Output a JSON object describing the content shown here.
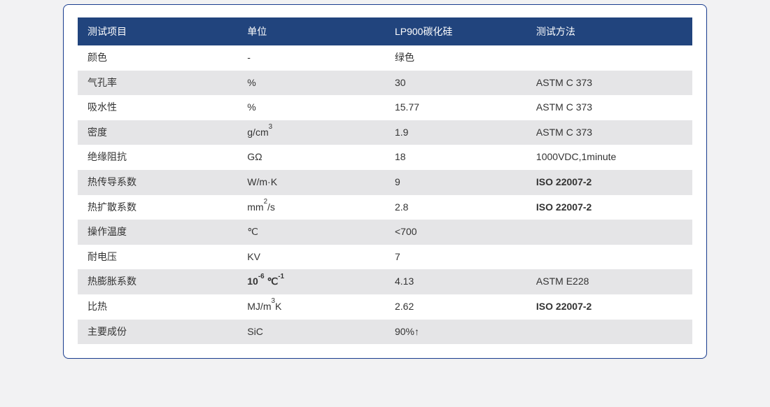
{
  "style": {
    "border_color": "#1a3d8f",
    "header_bg": "#21447d",
    "header_fg": "#ffffff",
    "row_even_bg": "#ffffff",
    "row_odd_bg": "#e5e5e7",
    "text_color": "#333333"
  },
  "table": {
    "headers": [
      "测试项目",
      "单位",
      "LP900碳化硅",
      "测试方法"
    ],
    "rows": [
      {
        "item": "颜色",
        "unit": "-",
        "value": "绿色",
        "method": ""
      },
      {
        "item": "气孔率",
        "unit": "%",
        "value": "30",
        "method": "ASTM C 373"
      },
      {
        "item": "吸水性",
        "unit": "%",
        "value": "15.77",
        "method": "ASTM C 373"
      },
      {
        "item": "密度",
        "unit_html": "g/cm<sup>3</sup>",
        "value": "1.9",
        "method": "ASTM C 373"
      },
      {
        "item": "绝缘阻抗",
        "unit": "GΩ",
        "value": "18",
        "method": "1000VDC,1minute"
      },
      {
        "item": "热传导系数",
        "unit": "W/m·K",
        "value": "9",
        "method": "ISO 22007-2",
        "method_bold": true
      },
      {
        "item": "热扩散系数",
        "unit_html": "mm<sup>2</sup>/s",
        "value": "2.8",
        "method": "ISO 22007-2",
        "method_bold": true
      },
      {
        "item": "操作温度",
        "unit": "℃",
        "value": "<700",
        "method": ""
      },
      {
        "item": "耐电压",
        "unit": "KV",
        "value": "7",
        "method": ""
      },
      {
        "item": "热膨胀系数",
        "unit_html": "10<sup>-6</sup> ℃<sup>-1</sup>",
        "unit_bold": true,
        "value": "4.13",
        "method": "ASTM E228"
      },
      {
        "item": "比热",
        "unit_html": "MJ/m<sup>3</sup>K",
        "value": "2.62",
        "method": "ISO 22007-2",
        "method_bold": true
      },
      {
        "item": "主要成份",
        "unit": "SiC",
        "value": "90%↑",
        "method": ""
      }
    ]
  }
}
